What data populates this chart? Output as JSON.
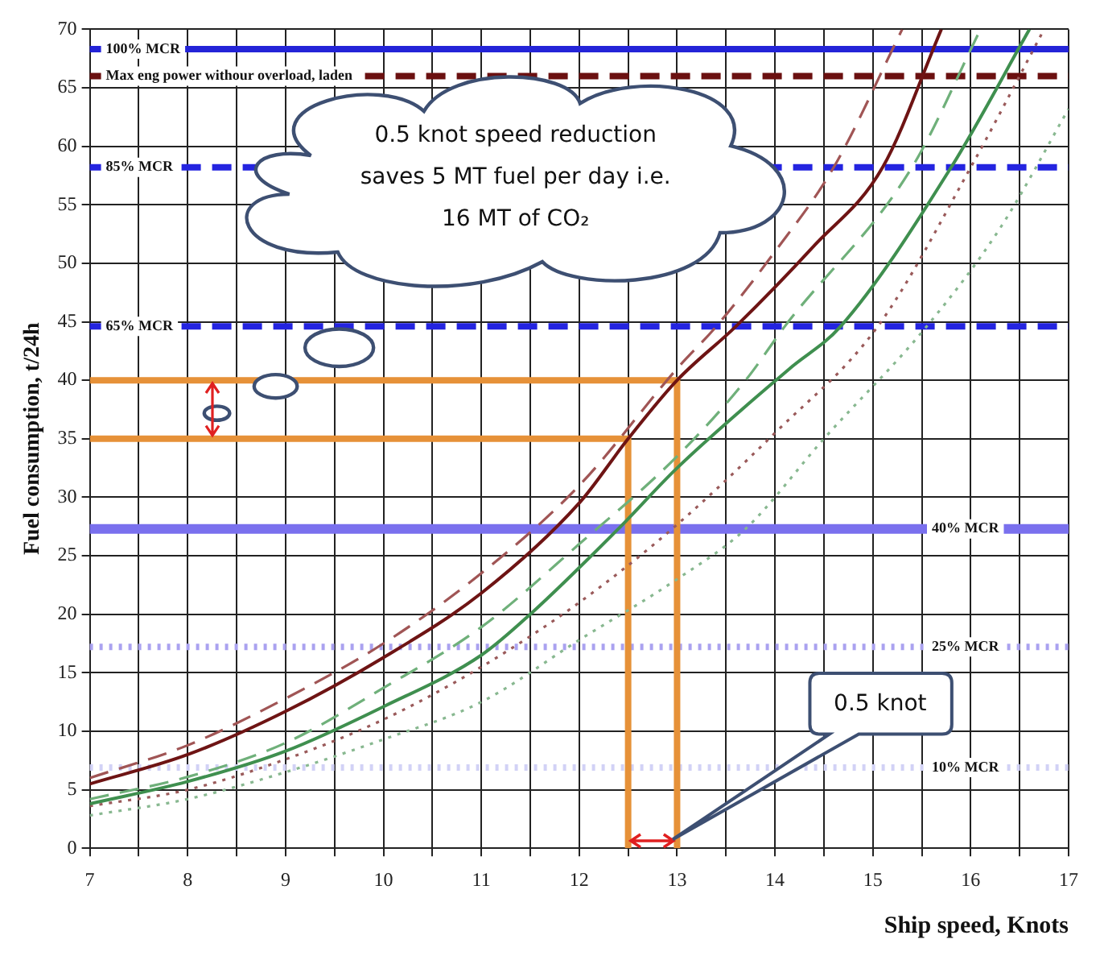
{
  "chart_data": {
    "type": "line",
    "xlabel": "Ship speed, Knots",
    "ylabel": "Fuel consumption, t/24h",
    "xlim": [
      7,
      17
    ],
    "ylim": [
      0,
      70
    ],
    "xticks": [
      7,
      {
        "value": 7.5,
        "label": null
      },
      8,
      {
        "value": 8.5,
        "label": null
      },
      9,
      {
        "value": 9.5,
        "label": null
      },
      10,
      {
        "value": 10.5,
        "label": null
      },
      11,
      {
        "value": 11.5,
        "label": null
      },
      12,
      {
        "value": 12.5,
        "label": null
      },
      13,
      {
        "value": 13.5,
        "label": null
      },
      14,
      {
        "value": 14.5,
        "label": null
      },
      15,
      {
        "value": 15.5,
        "label": null
      },
      16,
      {
        "value": 16.5,
        "label": null
      },
      17
    ],
    "yticks": [
      0,
      5,
      10,
      15,
      20,
      25,
      30,
      35,
      40,
      45,
      50,
      55,
      60,
      65,
      70
    ],
    "grid": true,
    "legend": false,
    "marker": "none",
    "series": [
      {
        "color": "#a05555",
        "line_style": "dashed",
        "x": [
          7,
          8,
          9,
          10,
          11,
          12,
          13,
          13.4,
          14,
          14.6,
          15.3
        ],
        "values": [
          6,
          8.8,
          12.8,
          17.5,
          23.5,
          31,
          41,
          44.6,
          51,
          58.2,
          70
        ]
      },
      {
        "color": "#6e1414",
        "line_style": "solid",
        "x": [
          7,
          8,
          9,
          10,
          11,
          12,
          12.5,
          13,
          13.6,
          14.4,
          15.1,
          15.7
        ],
        "values": [
          5.5,
          8,
          11.7,
          16.3,
          21.8,
          29.5,
          35,
          40,
          44.6,
          51.5,
          58.2,
          70
        ]
      },
      {
        "color": "#6fb07a",
        "line_style": "dashed",
        "x": [
          7,
          8,
          9,
          10,
          11,
          12,
          13,
          13.7,
          14.1,
          15.4,
          16.1
        ],
        "values": [
          4.2,
          6.1,
          9,
          13.7,
          18.9,
          26,
          33.5,
          40,
          44.6,
          58.2,
          70
        ]
      },
      {
        "color": "#3f8f4f",
        "line_style": "solid",
        "x": [
          7,
          8,
          9,
          10,
          11,
          11.5,
          12.4,
          13,
          14.15,
          14.67,
          15.8,
          16.6
        ],
        "values": [
          3.8,
          5.7,
          8.3,
          12.1,
          16.5,
          20,
          27.3,
          32.5,
          41,
          44.6,
          58.2,
          70
        ]
      },
      {
        "color": "#9a5a5a",
        "line_style": "dotted",
        "x": [
          7,
          8,
          9,
          10,
          11,
          12,
          12.95,
          14,
          15.05,
          16,
          16.75
        ],
        "values": [
          3.6,
          5,
          7.6,
          11,
          15.5,
          21,
          27.3,
          35.5,
          44.6,
          58.2,
          70
        ]
      },
      {
        "color": "#88b890",
        "line_style": "dotted",
        "x": [
          7,
          8,
          9,
          10,
          11,
          12,
          13,
          13.7,
          14.5,
          15.55,
          16.3,
          17
        ],
        "values": [
          2.8,
          4.2,
          6.5,
          9.3,
          12.5,
          17.8,
          23,
          27.3,
          35,
          44.6,
          53,
          63.2
        ]
      },
      {
        "color": "#e69138",
        "line_style": "solid",
        "x": [
          7,
          13,
          13
        ],
        "values": [
          40,
          40,
          0
        ]
      },
      {
        "color": "#e69138",
        "line_style": "solid",
        "x": [
          7,
          12.5,
          12.5
        ],
        "values": [
          35,
          35,
          0
        ]
      }
    ],
    "ref_lines": [
      {
        "axis": "y",
        "value": 68.3,
        "label": "100% MCR",
        "color": "#2424d8",
        "line_style": "solid"
      },
      {
        "axis": "y",
        "value": 66,
        "label": "Max eng power withour overload, laden",
        "color": "#6b1010",
        "line_style": "dashed"
      },
      {
        "axis": "y",
        "value": 58.2,
        "label": "85% MCR",
        "color": "#2424e0",
        "line_style": "dashed"
      },
      {
        "axis": "y",
        "value": 44.6,
        "label": "65% MCR",
        "color": "#2424e0",
        "line_style": "dashed"
      },
      {
        "axis": "y",
        "value": 27.3,
        "label": "40% MCR",
        "color": "#7a70ee",
        "line_style": "solid"
      },
      {
        "axis": "y",
        "value": 17.2,
        "label": "25% MCR",
        "color": "#aaa2f0",
        "line_style": "dotted"
      },
      {
        "axis": "y",
        "value": 6.9,
        "label": "10% MCR",
        "color": "#d2d2f6",
        "line_style": "dotted"
      }
    ],
    "annotations": [
      "0.5 knot speed reduction saves 5 MT fuel per day i.e. 16 MT of CO₂",
      "0.5 knot"
    ]
  }
}
